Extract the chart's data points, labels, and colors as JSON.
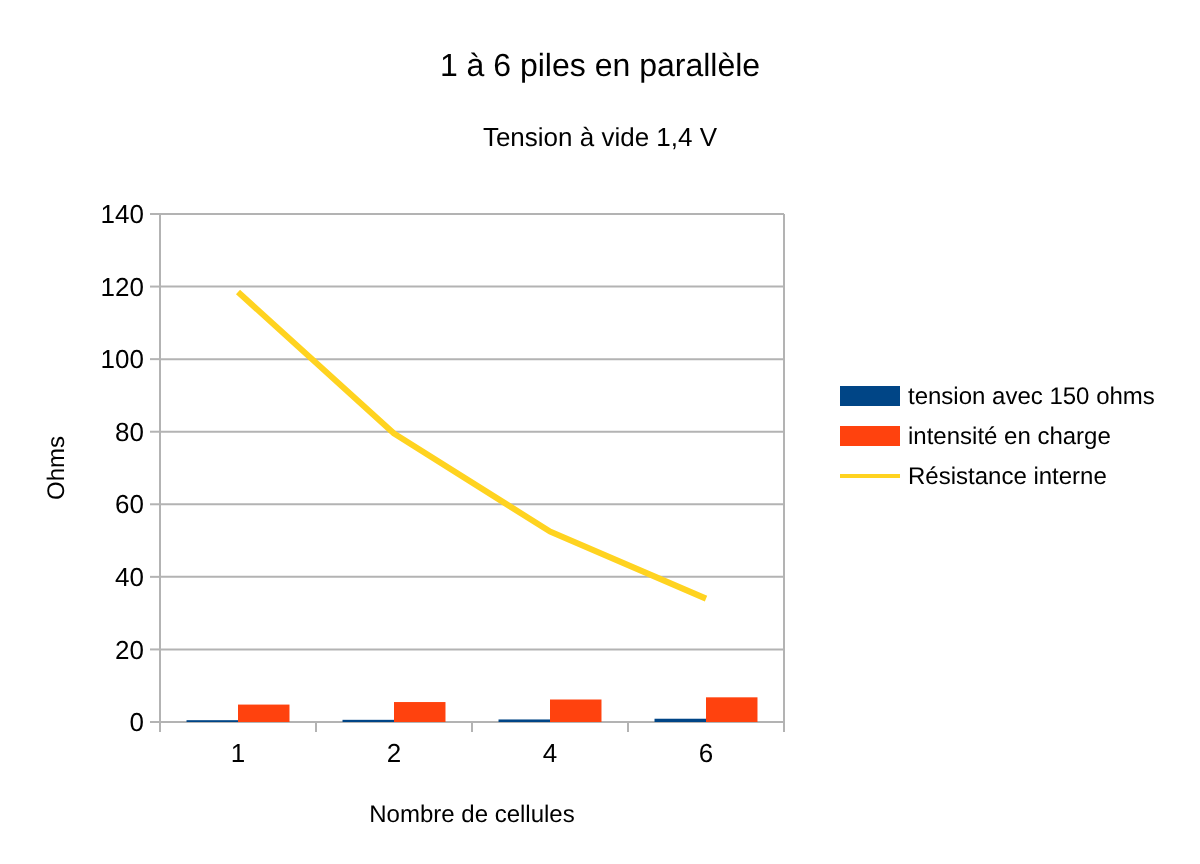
{
  "chart_data": {
    "type": "bar",
    "title": "1 à 6 piles en parallèle",
    "subtitle": "Tension à vide 1,4 V",
    "xlabel": "Nombre de cellules",
    "ylabel": "Ohms",
    "categories": [
      "1",
      "2",
      "4",
      "6"
    ],
    "series": [
      {
        "name": "tension avec 150 ohms",
        "color": "#004586",
        "values": [
          0.5,
          0.6,
          0.7,
          0.9
        ]
      },
      {
        "name": "intensité en charge",
        "color": "#ff420e",
        "values": [
          4.8,
          5.5,
          6.2,
          6.8
        ]
      },
      {
        "name": "Résistance interne",
        "type": "line",
        "color": "#ffd320",
        "values": [
          118.5,
          79.5,
          52.5,
          34
        ]
      }
    ],
    "ylim": [
      0,
      140
    ],
    "yticks": [
      0,
      20,
      40,
      60,
      80,
      100,
      120,
      140
    ],
    "grid": "y",
    "legend": "right",
    "marker": "none"
  }
}
